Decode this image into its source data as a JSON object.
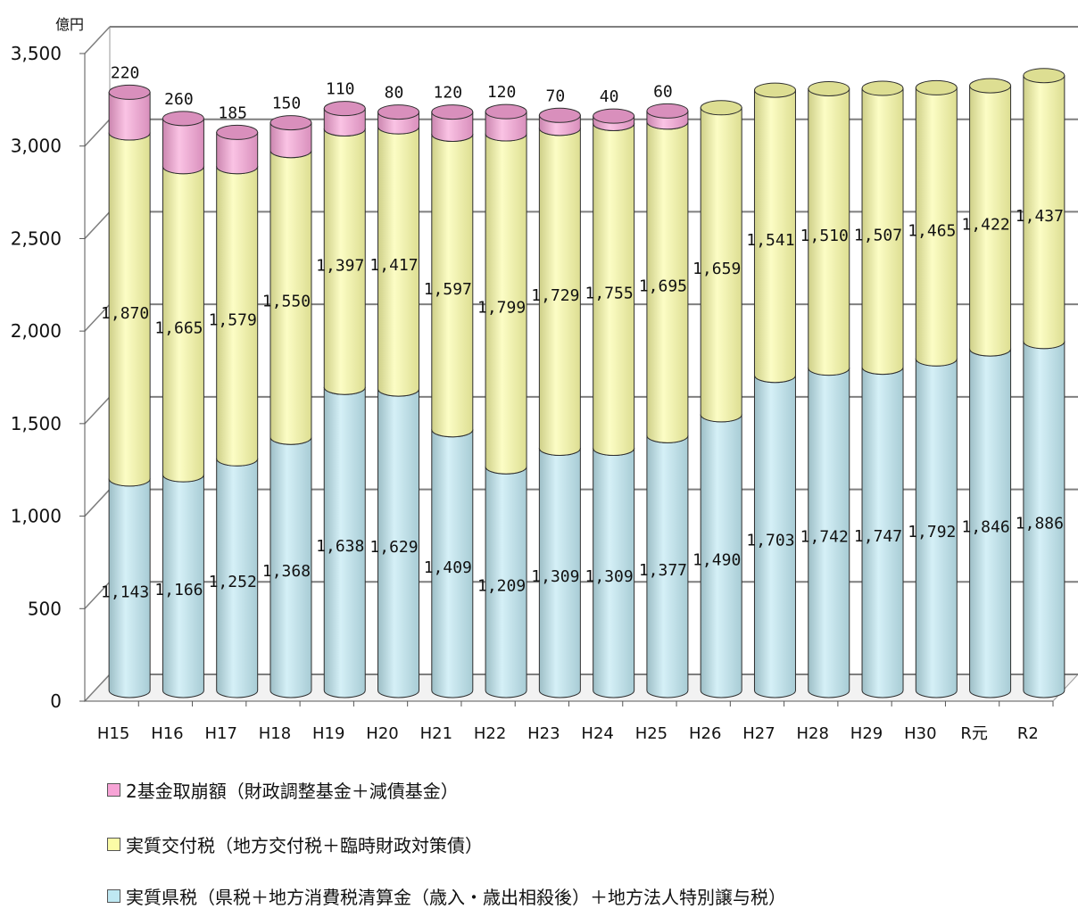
{
  "chart_data": {
    "type": "bar",
    "stacked": true,
    "style": "3d-cylinder",
    "unit_label": "億円",
    "title": "",
    "xlabel": "",
    "ylabel": "",
    "ylim": [
      0,
      3500
    ],
    "yticks": [
      0,
      500,
      1000,
      1500,
      2000,
      2500,
      3000,
      3500
    ],
    "ytick_labels": [
      "0",
      "500",
      "1,000",
      "1,500",
      "2,000",
      "2,500",
      "3,000",
      "3,500"
    ],
    "grid": true,
    "legend_position": "bottom",
    "categories": [
      "H15",
      "H16",
      "H17",
      "H18",
      "H19",
      "H20",
      "H21",
      "H22",
      "H23",
      "H24",
      "H25",
      "H26",
      "H27",
      "H28",
      "H29",
      "H30",
      "R元",
      "R2"
    ],
    "series": [
      {
        "name": "実質県税（県税＋地方消費税清算金（歳入・歳出相殺後）＋地方法人特別譲与税）",
        "color": "#bfe8f2",
        "values": [
          1143,
          1166,
          1252,
          1368,
          1638,
          1629,
          1409,
          1209,
          1309,
          1309,
          1377,
          1490,
          1703,
          1742,
          1747,
          1792,
          1846,
          1886
        ],
        "labels": [
          "1,143",
          "1,166",
          "1,252",
          "1,368",
          "1,638",
          "1,629",
          "1,409",
          "1,209",
          "1,309",
          "1,309",
          "1,377",
          "1,490",
          "1,703",
          "1,742",
          "1,747",
          "1,792",
          "1,846",
          "1,886"
        ]
      },
      {
        "name": "実質交付税（地方交付税＋臨時財政対策債）",
        "color": "#fbfca6",
        "values": [
          1870,
          1665,
          1579,
          1550,
          1397,
          1417,
          1597,
          1799,
          1729,
          1755,
          1695,
          1659,
          1541,
          1510,
          1507,
          1465,
          1422,
          1437
        ],
        "labels": [
          "1,870",
          "1,665",
          "1,579",
          "1,550",
          "1,397",
          "1,417",
          "1,597",
          "1,799",
          "1,729",
          "1,755",
          "1,695",
          "1,659",
          "1,541",
          "1,510",
          "1,507",
          "1,465",
          "1,422",
          "1,437"
        ]
      },
      {
        "name": "2基金取崩額（財政調整基金＋減債基金）",
        "color": "#f7a3d6",
        "values": [
          220,
          260,
          185,
          150,
          110,
          80,
          120,
          120,
          70,
          40,
          60,
          0,
          0,
          0,
          0,
          0,
          0,
          0
        ],
        "labels": [
          "220",
          "260",
          "185",
          "150",
          "110",
          "80",
          "120",
          "120",
          "70",
          "40",
          "60",
          "",
          "",
          "",
          "",
          "",
          "",
          ""
        ]
      }
    ],
    "legend_order": [
      2,
      1,
      0
    ]
  }
}
